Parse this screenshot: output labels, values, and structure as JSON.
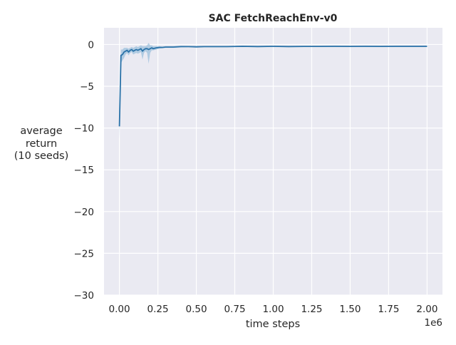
{
  "chart_data": {
    "type": "line",
    "title": "SAC FetchReachEnv-v0",
    "xlabel": "time steps",
    "ylabel": [
      "average",
      "return",
      "(10 seeds)"
    ],
    "x_offset_label": "1e6",
    "xlim": [
      -100000,
      2100000
    ],
    "ylim": [
      -30,
      2
    ],
    "x_ticks": [
      0,
      250000,
      500000,
      750000,
      1000000,
      1250000,
      1500000,
      1750000,
      2000000
    ],
    "x_tick_labels": [
      "0.00",
      "0.25",
      "0.50",
      "0.75",
      "1.00",
      "1.25",
      "1.50",
      "1.75",
      "2.00"
    ],
    "y_ticks": [
      0,
      -5,
      -10,
      -15,
      -20,
      -25,
      -30
    ],
    "y_tick_labels": [
      "0",
      "−5",
      "−10",
      "−15",
      "−20",
      "−25",
      "−30"
    ],
    "grid": true,
    "colors": {
      "line": "#2a72a8",
      "band": "#7fb0d6",
      "background": "#eaeaf2",
      "grid": "#ffffff"
    },
    "series": [
      {
        "x": [
          0,
          10000,
          20000,
          30000,
          40000,
          50000,
          60000,
          70000,
          80000,
          90000,
          100000,
          110000,
          120000,
          130000,
          140000,
          150000,
          160000,
          170000,
          180000,
          190000,
          200000,
          210000,
          220000,
          240000,
          260000,
          280000,
          300000,
          350000,
          400000,
          450000,
          500000,
          550000,
          600000,
          700000,
          800000,
          900000,
          1000000,
          1100000,
          1200000,
          1300000,
          1400000,
          1500000,
          1600000,
          1700000,
          1800000,
          1900000,
          2000000
        ],
        "y": [
          -9.8,
          -1.3,
          -1.2,
          -0.9,
          -0.8,
          -0.7,
          -0.9,
          -0.7,
          -0.6,
          -0.8,
          -0.7,
          -0.6,
          -0.7,
          -0.6,
          -0.5,
          -0.8,
          -0.6,
          -0.5,
          -0.5,
          -0.6,
          -0.5,
          -0.4,
          -0.5,
          -0.4,
          -0.35,
          -0.35,
          -0.3,
          -0.3,
          -0.25,
          -0.25,
          -0.28,
          -0.25,
          -0.25,
          -0.25,
          -0.22,
          -0.24,
          -0.22,
          -0.24,
          -0.23,
          -0.23,
          -0.22,
          -0.23,
          -0.22,
          -0.23,
          -0.22,
          -0.22,
          -0.22
        ],
        "lower": [
          -11.3,
          -2.2,
          -1.9,
          -1.6,
          -1.2,
          -1.0,
          -1.3,
          -1.0,
          -0.9,
          -1.2,
          -1.1,
          -1.0,
          -1.1,
          -1.0,
          -0.9,
          -1.8,
          -1.0,
          -0.8,
          -1.0,
          -2.3,
          -1.0,
          -0.7,
          -0.7,
          -0.6,
          -0.5,
          -0.45,
          -0.4,
          -0.4,
          -0.35,
          -0.32,
          -0.36,
          -0.32,
          -0.32,
          -0.31,
          -0.3,
          -0.3,
          -0.29,
          -0.3,
          -0.29,
          -0.29,
          -0.28,
          -0.29,
          -0.28,
          -0.29,
          -0.28,
          -0.28,
          -0.28
        ],
        "upper": [
          -8.3,
          -0.6,
          -0.6,
          -0.4,
          -0.4,
          -0.4,
          -0.5,
          -0.4,
          -0.3,
          -0.4,
          -0.3,
          -0.2,
          -0.3,
          -0.2,
          -0.1,
          -0.2,
          -0.2,
          -0.2,
          -0.1,
          0.2,
          -0.1,
          -0.1,
          -0.2,
          -0.2,
          -0.2,
          -0.25,
          -0.2,
          -0.2,
          -0.15,
          -0.18,
          -0.2,
          -0.18,
          -0.18,
          -0.19,
          -0.14,
          -0.18,
          -0.15,
          -0.18,
          -0.17,
          -0.17,
          -0.16,
          -0.17,
          -0.16,
          -0.17,
          -0.16,
          -0.16,
          -0.16
        ]
      }
    ]
  }
}
